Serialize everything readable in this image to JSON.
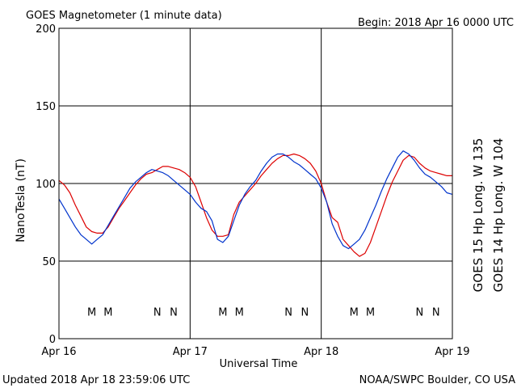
{
  "chart_data": {
    "type": "line",
    "title": "GOES Magnetometer (1 minute data)",
    "begin_label": "Begin:  2018 Apr 16 0000 UTC",
    "xlabel": "Universal Time",
    "ylabel": "NanoTesla (nT)",
    "ylim": [
      0,
      200
    ],
    "xlim": [
      0,
      72
    ],
    "x_unit": "hours since 2018 Apr 16 0000 UTC",
    "y_ticks": [
      0,
      50,
      100,
      150,
      200
    ],
    "x_ticks": [
      {
        "x": 0,
        "label": "Apr 16"
      },
      {
        "x": 24,
        "label": "Apr 17"
      },
      {
        "x": 48,
        "label": "Apr 18"
      },
      {
        "x": 72,
        "label": "Apr 19"
      }
    ],
    "grid": true,
    "series": [
      {
        "name": "GOES 15 Hp  Long. W 135",
        "color": "#dd0000",
        "points": [
          [
            0,
            102
          ],
          [
            1,
            99
          ],
          [
            2,
            94
          ],
          [
            3,
            86
          ],
          [
            4,
            79
          ],
          [
            5,
            72
          ],
          [
            6,
            69
          ],
          [
            7,
            68
          ],
          [
            8,
            68
          ],
          [
            9,
            72
          ],
          [
            10,
            78
          ],
          [
            11,
            84
          ],
          [
            12,
            89
          ],
          [
            13,
            94
          ],
          [
            14,
            99
          ],
          [
            15,
            103
          ],
          [
            16,
            106
          ],
          [
            17,
            107
          ],
          [
            18,
            109
          ],
          [
            19,
            111
          ],
          [
            20,
            111
          ],
          [
            21,
            110
          ],
          [
            22,
            109
          ],
          [
            23,
            107
          ],
          [
            24,
            104
          ],
          [
            25,
            98
          ],
          [
            26,
            88
          ],
          [
            27,
            78
          ],
          [
            28,
            70
          ],
          [
            29,
            66
          ],
          [
            30,
            66
          ],
          [
            31,
            67
          ],
          [
            32,
            80
          ],
          [
            33,
            88
          ],
          [
            34,
            92
          ],
          [
            35,
            96
          ],
          [
            36,
            100
          ],
          [
            37,
            105
          ],
          [
            38,
            109
          ],
          [
            39,
            113
          ],
          [
            40,
            116
          ],
          [
            41,
            118
          ],
          [
            42,
            118
          ],
          [
            43,
            119
          ],
          [
            44,
            118
          ],
          [
            45,
            116
          ],
          [
            46,
            113
          ],
          [
            47,
            108
          ],
          [
            48,
            100
          ],
          [
            49,
            88
          ],
          [
            50,
            78
          ],
          [
            51,
            75
          ],
          [
            52,
            64
          ],
          [
            53,
            60
          ],
          [
            54,
            56
          ],
          [
            55,
            53
          ],
          [
            56,
            55
          ],
          [
            57,
            62
          ],
          [
            58,
            72
          ],
          [
            59,
            82
          ],
          [
            60,
            92
          ],
          [
            61,
            101
          ],
          [
            62,
            108
          ],
          [
            63,
            115
          ],
          [
            64,
            118
          ],
          [
            65,
            117
          ],
          [
            66,
            113
          ],
          [
            67,
            110
          ],
          [
            68,
            108
          ],
          [
            69,
            107
          ],
          [
            70,
            106
          ],
          [
            71,
            105
          ],
          [
            72,
            105
          ]
        ]
      },
      {
        "name": "GOES 14 Hp  Long. W 104",
        "color": "#0033cc",
        "points": [
          [
            0,
            90
          ],
          [
            1,
            84
          ],
          [
            2,
            78
          ],
          [
            3,
            72
          ],
          [
            4,
            67
          ],
          [
            5,
            64
          ],
          [
            6,
            61
          ],
          [
            7,
            64
          ],
          [
            8,
            67
          ],
          [
            9,
            73
          ],
          [
            10,
            79
          ],
          [
            11,
            85
          ],
          [
            12,
            91
          ],
          [
            13,
            97
          ],
          [
            14,
            101
          ],
          [
            15,
            104
          ],
          [
            16,
            107
          ],
          [
            17,
            109
          ],
          [
            18,
            108
          ],
          [
            19,
            107
          ],
          [
            20,
            105
          ],
          [
            21,
            102
          ],
          [
            22,
            99
          ],
          [
            23,
            96
          ],
          [
            24,
            93
          ],
          [
            25,
            88
          ],
          [
            26,
            84
          ],
          [
            27,
            82
          ],
          [
            28,
            76
          ],
          [
            29,
            64
          ],
          [
            30,
            62
          ],
          [
            31,
            66
          ],
          [
            32,
            76
          ],
          [
            33,
            86
          ],
          [
            34,
            93
          ],
          [
            35,
            98
          ],
          [
            36,
            102
          ],
          [
            37,
            108
          ],
          [
            38,
            113
          ],
          [
            39,
            117
          ],
          [
            40,
            119
          ],
          [
            41,
            119
          ],
          [
            42,
            117
          ],
          [
            43,
            114
          ],
          [
            44,
            112
          ],
          [
            45,
            109
          ],
          [
            46,
            106
          ],
          [
            47,
            103
          ],
          [
            48,
            97
          ],
          [
            49,
            88
          ],
          [
            50,
            74
          ],
          [
            51,
            66
          ],
          [
            52,
            60
          ],
          [
            53,
            58
          ],
          [
            54,
            61
          ],
          [
            55,
            64
          ],
          [
            56,
            70
          ],
          [
            57,
            78
          ],
          [
            58,
            86
          ],
          [
            59,
            95
          ],
          [
            60,
            103
          ],
          [
            61,
            110
          ],
          [
            62,
            117
          ],
          [
            63,
            121
          ],
          [
            64,
            119
          ],
          [
            65,
            115
          ],
          [
            66,
            110
          ],
          [
            67,
            106
          ],
          [
            68,
            104
          ],
          [
            69,
            101
          ],
          [
            70,
            98
          ],
          [
            71,
            94
          ],
          [
            72,
            93
          ]
        ]
      }
    ],
    "markers": [
      {
        "letter": "M",
        "series": "GOES 14 Hp  Long. W 104",
        "x": 6
      },
      {
        "letter": "M",
        "series": "GOES 15 Hp  Long. W 135",
        "x": 9
      },
      {
        "letter": "N",
        "series": "GOES 14 Hp  Long. W 104",
        "x": 18
      },
      {
        "letter": "N",
        "series": "GOES 15 Hp  Long. W 135",
        "x": 21
      },
      {
        "letter": "M",
        "series": "GOES 14 Hp  Long. W 104",
        "x": 30
      },
      {
        "letter": "M",
        "series": "GOES 15 Hp  Long. W 135",
        "x": 33
      },
      {
        "letter": "N",
        "series": "GOES 14 Hp  Long. W 104",
        "x": 42
      },
      {
        "letter": "N",
        "series": "GOES 15 Hp  Long. W 135",
        "x": 45
      },
      {
        "letter": "M",
        "series": "GOES 14 Hp  Long. W 104",
        "x": 54
      },
      {
        "letter": "M",
        "series": "GOES 15 Hp  Long. W 135",
        "x": 57
      },
      {
        "letter": "N",
        "series": "GOES 14 Hp  Long. W 104",
        "x": 66
      },
      {
        "letter": "N",
        "series": "GOES 15 Hp  Long. W 135",
        "x": 69
      }
    ],
    "marker_level": 17
  },
  "footer": {
    "updated": "Updated 2018 Apr 18 23:59:06 UTC",
    "credit": "NOAA/SWPC Boulder, CO USA"
  }
}
